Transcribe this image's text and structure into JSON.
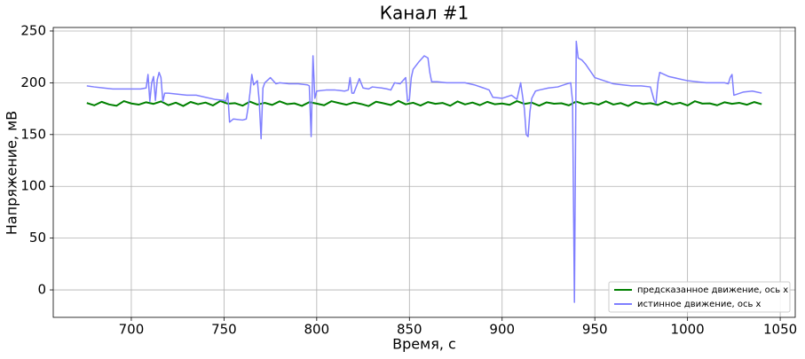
{
  "chart_data": {
    "type": "line",
    "title": "Канал #1",
    "xlabel": "Время, с",
    "ylabel": "Напряжение, мВ",
    "xlim": [
      657.9,
      1058.1
    ],
    "ylim": [
      -26.5,
      253.4
    ],
    "xticks": [
      700,
      750,
      800,
      850,
      900,
      950,
      1000,
      1050
    ],
    "yticks": [
      0,
      50,
      100,
      150,
      200,
      250
    ],
    "grid": true,
    "legend": "lower right",
    "series": [
      {
        "name": "предсказанное движение, ось x",
        "color": "#008000",
        "x": [
          676,
          680,
          684,
          688,
          692,
          696,
          700,
          704,
          708,
          712,
          716,
          720,
          724,
          728,
          732,
          736,
          740,
          744,
          748,
          752,
          756,
          760,
          764,
          768,
          772,
          776,
          780,
          784,
          788,
          792,
          796,
          800,
          804,
          808,
          812,
          816,
          820,
          824,
          828,
          832,
          836,
          840,
          844,
          848,
          852,
          856,
          860,
          864,
          868,
          872,
          876,
          880,
          884,
          888,
          892,
          896,
          900,
          904,
          908,
          912,
          916,
          920,
          924,
          928,
          932,
          936,
          940,
          944,
          948,
          952,
          956,
          960,
          964,
          968,
          972,
          976,
          980,
          984,
          988,
          992,
          996,
          1000,
          1004,
          1008,
          1012,
          1016,
          1020,
          1024,
          1028,
          1032,
          1036,
          1040
        ],
        "values": [
          180.5,
          178.2,
          181.6,
          179.1,
          177.8,
          182.3,
          180.0,
          178.9,
          181.2,
          179.6,
          182.0,
          178.4,
          180.8,
          177.6,
          181.5,
          179.3,
          180.9,
          178.1,
          182.4,
          179.8,
          180.3,
          177.9,
          181.8,
          179.0,
          180.6,
          178.6,
          182.1,
          179.4,
          180.1,
          177.7,
          181.3,
          179.9,
          178.3,
          182.2,
          180.4,
          178.8,
          181.0,
          179.5,
          177.5,
          181.7,
          180.2,
          178.5,
          182.5,
          179.2,
          180.7,
          178.0,
          181.4,
          179.7,
          180.5,
          177.8,
          182.0,
          179.1,
          180.9,
          178.4,
          181.6,
          179.3,
          180.0,
          178.7,
          182.3,
          179.6,
          180.8,
          177.9,
          181.1,
          179.8,
          180.2,
          178.2,
          181.9,
          179.4,
          180.6,
          178.9,
          182.1,
          179.0,
          180.4,
          177.6,
          181.5,
          179.5,
          180.3,
          178.6,
          181.8,
          179.2,
          180.7,
          178.1,
          182.2,
          179.9,
          180.1,
          178.3,
          181.2,
          179.7,
          180.6,
          178.8,
          181.4,
          179.3
        ]
      },
      {
        "name": "истинное движение, ось x",
        "color": "#7f7fff",
        "x": [
          676,
          680,
          685,
          690,
          695,
          700,
          705,
          708,
          709,
          710,
          711,
          712,
          713,
          714,
          715,
          716,
          717,
          718,
          720,
          725,
          730,
          735,
          740,
          745,
          750,
          751,
          752,
          753,
          755,
          760,
          762,
          763,
          764,
          765,
          766,
          768,
          769,
          770,
          771,
          772,
          775,
          778,
          780,
          785,
          790,
          795,
          796,
          797,
          798,
          799,
          800,
          805,
          810,
          815,
          817,
          818,
          819,
          820,
          823,
          825,
          828,
          830,
          835,
          838,
          840,
          842,
          845,
          848,
          849,
          850,
          851,
          852,
          855,
          858,
          860,
          861,
          862,
          865,
          870,
          875,
          880,
          885,
          890,
          893,
          895,
          900,
          905,
          908,
          910,
          912,
          913,
          914,
          915,
          916,
          918,
          920,
          925,
          930,
          935,
          937,
          938,
          939,
          940,
          941,
          943,
          945,
          950,
          955,
          960,
          965,
          970,
          975,
          980,
          982,
          983,
          984,
          985,
          990,
          995,
          1000,
          1005,
          1010,
          1015,
          1020,
          1022,
          1023,
          1024,
          1025,
          1030,
          1035,
          1040
        ],
        "values": [
          197,
          196,
          195,
          194,
          194,
          194,
          194,
          195,
          208,
          182,
          200,
          206,
          183,
          203,
          210,
          205,
          182,
          190,
          190,
          189,
          188,
          188,
          186,
          184,
          183,
          182,
          190,
          162,
          165,
          164,
          165,
          176,
          190,
          208,
          198,
          202,
          182,
          146,
          195,
          200,
          205,
          199,
          200,
          199,
          199,
          198,
          197,
          148,
          226,
          185,
          192,
          193,
          193,
          192,
          193,
          205,
          190,
          190,
          204,
          195,
          194,
          196,
          195,
          194,
          193,
          200,
          199,
          205,
          182,
          184,
          205,
          213,
          220,
          226,
          224,
          210,
          201,
          201,
          200,
          200,
          200,
          198,
          195,
          193,
          186,
          185,
          188,
          184,
          200,
          175,
          150,
          148,
          172,
          185,
          192,
          193,
          195,
          196,
          199,
          200,
          182,
          -12,
          240,
          224,
          222,
          218,
          205,
          202,
          199,
          198,
          197,
          197,
          196,
          183,
          180,
          200,
          210,
          206,
          204,
          202,
          201,
          200,
          200,
          200,
          199,
          205,
          208,
          188,
          191,
          192,
          190
        ]
      }
    ]
  }
}
